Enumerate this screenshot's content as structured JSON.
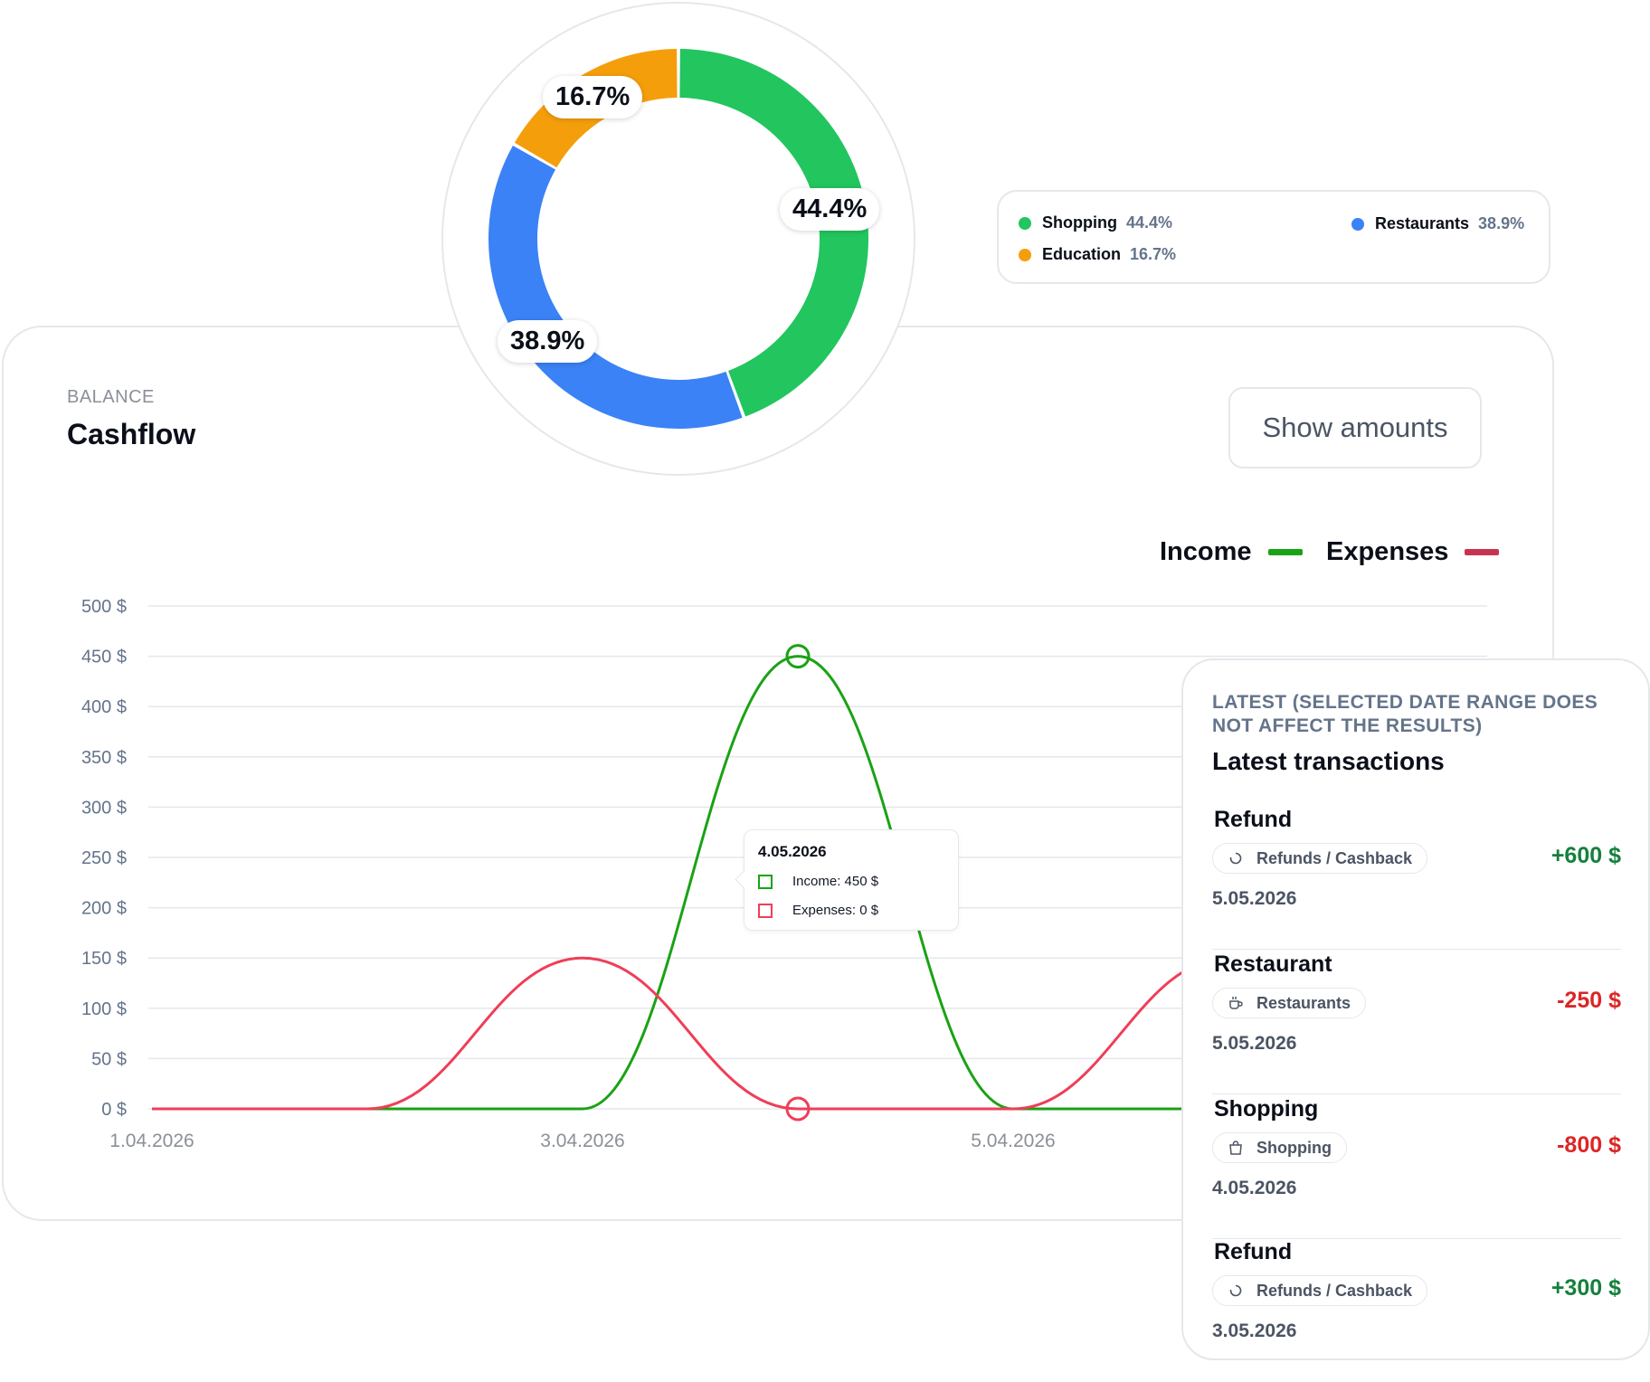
{
  "cashflow": {
    "eyebrow": "BALANCE",
    "title": "Cashflow",
    "show_amounts_label": "Show amounts",
    "legend": [
      {
        "label": "Income",
        "color": "#1aa215"
      },
      {
        "label": "Expenses",
        "color": "#c8334f"
      }
    ],
    "tooltip": {
      "date": "4.05.2026",
      "income_text": "Income: 450 $",
      "expenses_text": "Expenses: 0 $"
    }
  },
  "chart_data": [
    {
      "type": "line",
      "title": "",
      "ylim": [
        0,
        500
      ],
      "y_ticks": [
        "0 $",
        "50 $",
        "100 $",
        "150 $",
        "200 $",
        "250 $",
        "300 $",
        "350 $",
        "400 $",
        "450 $",
        "500 $"
      ],
      "x_tick_labels": [
        "1.04.2026",
        "3.04.2026",
        "5.04.2026"
      ],
      "x": [
        "1.04.2026",
        "2.04.2026",
        "3.04.2026",
        "4.04.2026",
        "5.04.2026",
        "6.04.2026"
      ],
      "series": [
        {
          "name": "Income",
          "color": "#1aa215",
          "values": [
            0,
            0,
            0,
            450,
            0,
            0
          ]
        },
        {
          "name": "Expenses",
          "color": "#ef3e58",
          "values": [
            0,
            0,
            150,
            0,
            0,
            150
          ]
        }
      ],
      "highlighted_index": 3,
      "grid": true
    },
    {
      "type": "pie",
      "labels": [
        "Shopping",
        "Restaurants",
        "Education"
      ],
      "values": [
        44.4,
        38.9,
        16.7
      ],
      "value_labels": [
        "44.4%",
        "38.9%",
        "16.7%"
      ],
      "colors": [
        "#22c55e",
        "#3b82f6",
        "#f59e0b"
      ]
    }
  ],
  "categories_legend": [
    {
      "name": "Shopping",
      "pct": "44.4%",
      "color": "#22c55e"
    },
    {
      "name": "Education",
      "pct": "16.7%",
      "color": "#f59e0b"
    },
    {
      "name": "Restaurants",
      "pct": "38.9%",
      "color": "#3b82f6"
    }
  ],
  "transactions": {
    "eyebrow": "LATEST (SELECTED DATE RANGE DOES NOT AFFECT THE RESULTS)",
    "title": "Latest transactions",
    "items": [
      {
        "name": "Refund",
        "category": "Refunds / Cashback",
        "icon": "refresh-icon",
        "date": "5.05.2026",
        "amount": "+600 $",
        "amount_color": "#15803d"
      },
      {
        "name": "Restaurant",
        "category": "Restaurants",
        "icon": "coffee-cup-icon",
        "date": "5.05.2026",
        "amount": "-250 $",
        "amount_color": "#dc2626"
      },
      {
        "name": "Shopping",
        "category": "Shopping",
        "icon": "shopping-bag-icon",
        "date": "4.05.2026",
        "amount": "-800 $",
        "amount_color": "#dc2626"
      },
      {
        "name": "Refund",
        "category": "Refunds / Cashback",
        "icon": "refresh-icon",
        "date": "3.05.2026",
        "amount": "+300 $",
        "amount_color": "#15803d"
      }
    ]
  }
}
